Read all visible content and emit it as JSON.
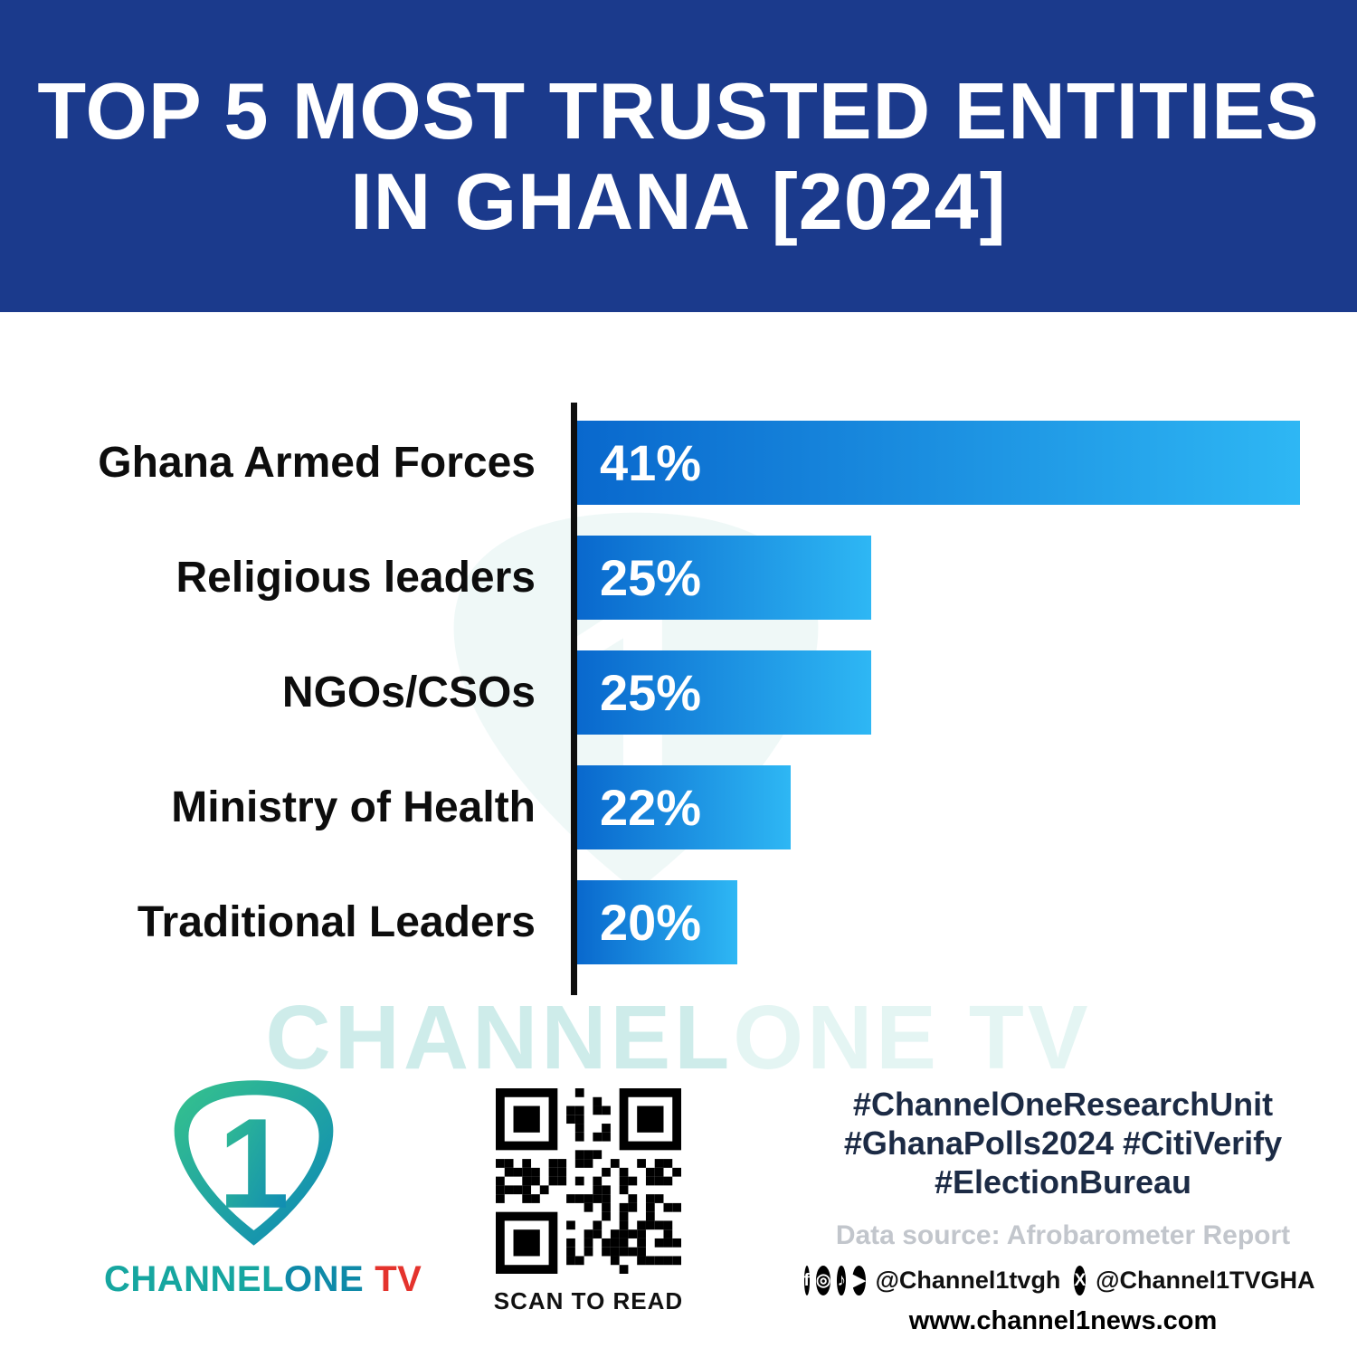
{
  "header": {
    "title_line1": "TOP 5 MOST TRUSTED ENTITIES",
    "title_line2": "IN GHANA [2024]"
  },
  "chart_data": {
    "type": "bar",
    "orientation": "horizontal",
    "title": "TOP 5 MOST TRUSTED ENTITIES IN GHANA [2024]",
    "categories": [
      "Ghana Armed Forces",
      "Religious leaders",
      "NGOs/CSOs",
      "Ministry of Health",
      "Traditional Leaders"
    ],
    "values": [
      41,
      25,
      25,
      22,
      20
    ],
    "value_labels": [
      "41%",
      "25%",
      "25%",
      "22%",
      "20%"
    ],
    "unit": "%",
    "xlim": [
      14,
      41
    ],
    "gridlines": false,
    "legend": false,
    "bar_labels_inside": true,
    "bar_gradient_start": "#0968cd",
    "bar_gradient_end": "#2eb7f4"
  },
  "watermark": {
    "part1": "CHANNEL",
    "part2": "ONE TV"
  },
  "footer": {
    "logo": {
      "number": "1",
      "text_channel": "CHANNEL",
      "text_one": "ONE",
      "text_tv": "TV"
    },
    "qr_caption": "SCAN TO READ",
    "hashtags": [
      "#ChannelOneResearchUnit",
      "#GhanaPolls2024 #CitiVerify",
      "#ElectionBureau"
    ],
    "data_source": "Data source: Afrobarometer Report",
    "social": {
      "icons": [
        {
          "name": "facebook-icon",
          "glyph": "f"
        },
        {
          "name": "instagram-icon",
          "glyph": "◎"
        },
        {
          "name": "tiktok-icon",
          "glyph": "♪"
        },
        {
          "name": "youtube-icon",
          "glyph": "▶"
        }
      ],
      "handle1": "@Channel1tvgh",
      "x_icon_glyph": "X",
      "handle2": "@Channel1TVGHA"
    },
    "website": "www.channel1news.com"
  },
  "colors": {
    "header_bg": "#1b3a8c",
    "bar_gradient_start": "#0968cd",
    "bar_gradient_end": "#2eb7f4",
    "accent_teal": "#16a6a0",
    "tv_red": "#e4332d"
  }
}
